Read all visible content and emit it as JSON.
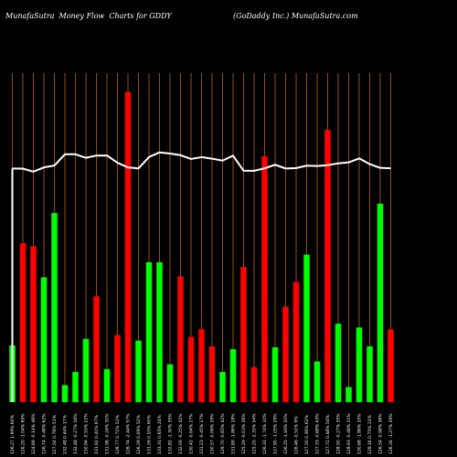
{
  "header": {
    "site_title": "MunafaSutra  Money Flow  Charts for GDDY",
    "company": "(GoDaddy Inc.) MunafaSutra.com"
  },
  "colors": {
    "background": "#000000",
    "up": "#00ff00",
    "down": "#ff0000",
    "grid": "#b8641e",
    "price_line": "#ffffff"
  },
  "chart_data": {
    "type": "bar",
    "title": "MunafaSutra  Money Flow  Charts for GDDY",
    "subtitle": "(GoDaddy Inc.) MunafaSutra.com",
    "categories": [
      "126.27 1.99% 60%",
      "126.20 -1.04% 69%",
      "124.89 -0.14% 46%",
      "126.74 -0.48% 62%",
      "127.54 0.76% 51%",
      "132.48 0.44% 17%",
      "132.48 -0.27% 16%",
      "130.94 -0.55% 22%",
      "131.92 0.41% 67%",
      "131.96 -0.24% 31%",
      "128.77 0.71% 51%",
      "126.74 -2.44% 57%",
      "126.29 0.09% 52%",
      "131.26 0.10% 60%",
      "133.31 0.65% 24%",
      "132.82 -1.30% 35%",
      "132.09 -0.25% 42%",
      "130.42 -0.64% 27%",
      "131.23 -0.45% 17%",
      "130.57 -0.06% 29%",
      "129.70 -0.65% 42%",
      "131.89 -1.86% 18%",
      "125.29 -0.03% 26%",
      "125.25 -2.35% 54%",
      "126.32 -1.74% 32%",
      "127.90 -1.05% 29%",
      "126.25 -1.16% 20%",
      "126.46 -0.51% 9%",
      "127.50 0.36% 62%",
      "127.33 -0.68% 43%",
      "127.72 0.48% 54%",
      "128.50 -0.27% 35%",
      "128.93 -0.48% 21%",
      "130.68 -1.86% 20%",
      "128.16 0.75% 22%",
      "126.54 -0.98% 36%",
      "126.34 -1.27% 29%"
    ],
    "values": [
      60,
      168,
      165,
      132,
      200,
      18,
      32,
      67,
      112,
      35,
      71,
      328,
      65,
      148,
      148,
      40,
      133,
      69,
      77,
      59,
      32,
      56,
      143,
      37,
      260,
      58,
      101,
      127,
      156,
      43,
      288,
      83,
      16,
      79,
      59,
      210,
      77
    ],
    "directions": [
      "up",
      "down",
      "down",
      "up",
      "up",
      "up",
      "up",
      "up",
      "down",
      "up",
      "down",
      "down",
      "up",
      "up",
      "up",
      "up",
      "down",
      "down",
      "down",
      "down",
      "up",
      "up",
      "down",
      "down",
      "down",
      "up",
      "down",
      "down",
      "up",
      "up",
      "down",
      "up",
      "up",
      "up",
      "up",
      "up",
      "down"
    ],
    "price": [
      126.27,
      126.2,
      124.89,
      126.74,
      127.54,
      132.48,
      132.48,
      130.94,
      131.92,
      131.96,
      128.77,
      126.74,
      126.29,
      131.26,
      133.31,
      132.82,
      132.09,
      130.42,
      131.23,
      130.57,
      129.7,
      131.89,
      125.29,
      125.25,
      126.32,
      127.9,
      126.25,
      126.46,
      127.5,
      127.33,
      127.72,
      128.5,
      128.93,
      130.68,
      128.16,
      126.54,
      126.34
    ],
    "grid": true
  }
}
